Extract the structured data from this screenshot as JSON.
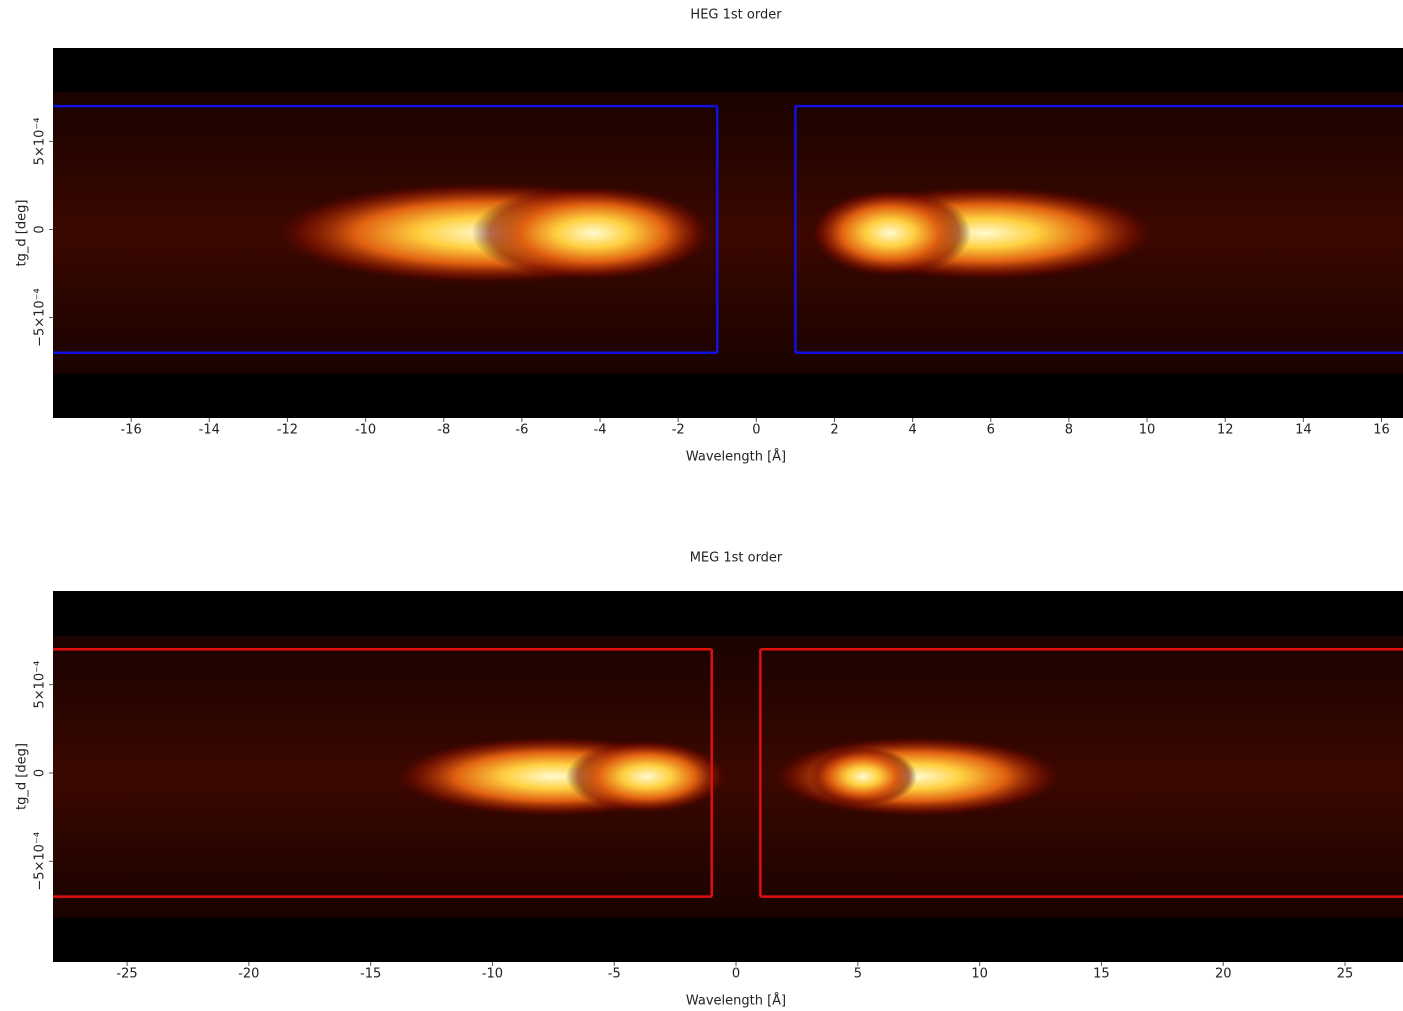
{
  "chart_data": [
    {
      "type": "heatmap",
      "title": "HEG 1st order",
      "xlabel": "Wavelength [Å]",
      "ylabel": "tg_d [deg]",
      "xlim": [
        -18,
        16.55
      ],
      "ylim": [
        -0.00107,
        0.00103
      ],
      "xticks": [
        -16,
        -14,
        -12,
        -10,
        -8,
        -6,
        -4,
        -2,
        0,
        2,
        4,
        6,
        8,
        10,
        12,
        14,
        16
      ],
      "yticks": [
        {
          "value": -0.0005,
          "label": "−5×10⁻⁴"
        },
        0,
        {
          "value": 0.0005,
          "label": "5×10⁻⁴"
        }
      ],
      "region_color": "#1010e0",
      "regions": [
        {
          "x": [
            -18,
            -1
          ],
          "y": [
            -0.0007,
            0.0007
          ]
        },
        {
          "x": [
            1,
            16.55
          ],
          "y": [
            -0.0007,
            0.0007
          ]
        }
      ]
    },
    {
      "type": "heatmap",
      "title": "MEG 1st order",
      "xlabel": "Wavelength [Å]",
      "ylabel": "tg_d [deg]",
      "xlim": [
        -28.04,
        27.38
      ],
      "ylim": [
        -0.00107,
        0.00103
      ],
      "xticks": [
        -25,
        -20,
        -15,
        -10,
        -5,
        0,
        5,
        10,
        15,
        20,
        25
      ],
      "yticks": [
        {
          "value": -0.0005,
          "label": "−5×10⁻⁴"
        },
        0,
        {
          "value": 0.0005,
          "label": "5×10⁻⁴"
        }
      ],
      "region_color": "#e01010",
      "regions": [
        {
          "x": [
            -28.04,
            -1
          ],
          "y": [
            -0.0007,
            0.0007
          ]
        },
        {
          "x": [
            1,
            27.38
          ],
          "y": [
            -0.0007,
            0.0007
          ]
        }
      ]
    }
  ]
}
